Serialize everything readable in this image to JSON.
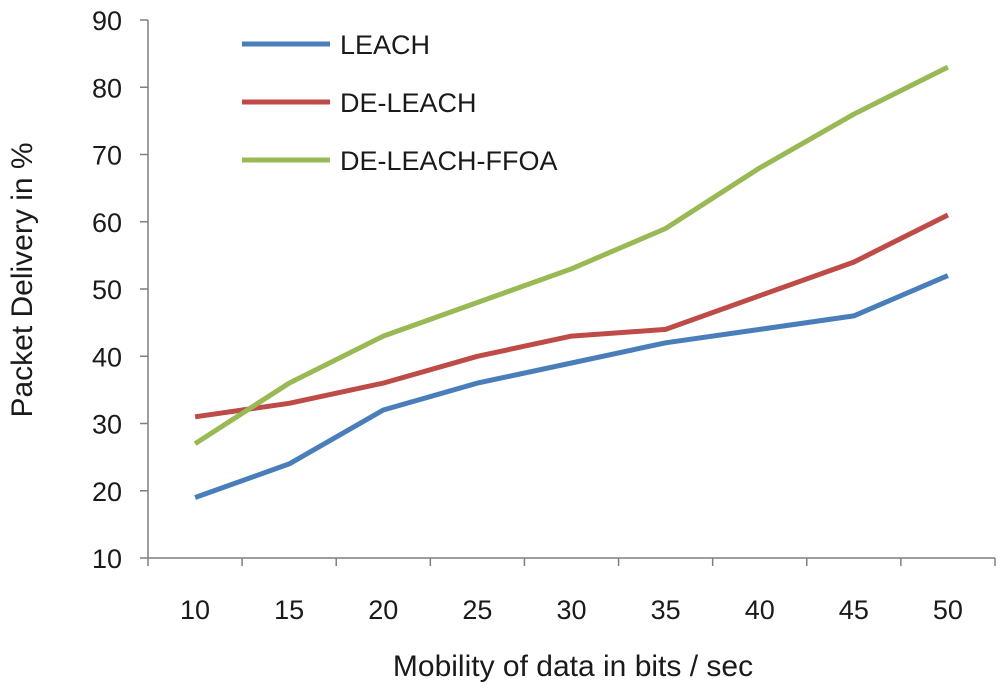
{
  "chart_data": {
    "type": "line",
    "title": "",
    "xlabel": "Mobility of data in bits / sec",
    "ylabel": "Packet Delivery in %",
    "x": [
      10,
      15,
      20,
      25,
      30,
      35,
      40,
      45,
      50
    ],
    "ylim": [
      10,
      90
    ],
    "yticks": [
      10,
      20,
      30,
      40,
      50,
      60,
      70,
      80,
      90
    ],
    "grid": false,
    "legend_position": "top-left",
    "series": [
      {
        "name": "LEACH",
        "color": "#4a7ebb",
        "values": [
          19,
          24,
          32,
          36,
          39,
          42,
          44,
          46,
          52
        ]
      },
      {
        "name": "DE-LEACH",
        "color": "#be4b48",
        "values": [
          31,
          33,
          36,
          40,
          43,
          44,
          49,
          54,
          61
        ]
      },
      {
        "name": "DE-LEACH-FFOA",
        "color": "#98b954",
        "values": [
          27,
          36,
          43,
          48,
          53,
          59,
          68,
          76,
          83
        ]
      }
    ]
  }
}
